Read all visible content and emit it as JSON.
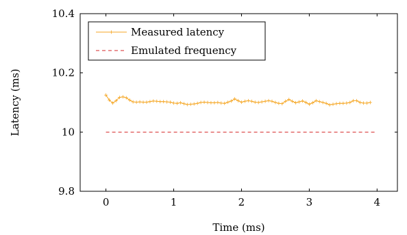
{
  "chart_data": {
    "type": "line",
    "title": "",
    "xlabel": "Time (ms)",
    "ylabel": "Latency (ms)",
    "xlim": [
      -0.38,
      4.3
    ],
    "ylim": [
      9.8,
      10.4
    ],
    "xticks": [
      0,
      1,
      2,
      3,
      4
    ],
    "xtick_labels": [
      "0",
      "1",
      "2",
      "3",
      "4"
    ],
    "yticks": [
      9.8,
      10,
      10.2,
      10.4
    ],
    "ytick_labels": [
      "9.8",
      "10",
      "10.2",
      "10.4"
    ],
    "grid": false,
    "legend_position": "top-left",
    "series": [
      {
        "name": "Measured latency",
        "color": "#f5a623",
        "style": "solid",
        "marker": "plus",
        "x": [
          0.0,
          0.05,
          0.1,
          0.15,
          0.2,
          0.25,
          0.3,
          0.35,
          0.4,
          0.45,
          0.5,
          0.55,
          0.6,
          0.65,
          0.7,
          0.75,
          0.8,
          0.85,
          0.9,
          0.95,
          1.0,
          1.05,
          1.1,
          1.15,
          1.2,
          1.25,
          1.3,
          1.35,
          1.4,
          1.45,
          1.5,
          1.55,
          1.6,
          1.65,
          1.7,
          1.75,
          1.8,
          1.85,
          1.9,
          1.95,
          2.0,
          2.05,
          2.1,
          2.15,
          2.2,
          2.25,
          2.3,
          2.35,
          2.4,
          2.45,
          2.5,
          2.55,
          2.6,
          2.65,
          2.7,
          2.75,
          2.8,
          2.85,
          2.9,
          2.95,
          3.0,
          3.05,
          3.1,
          3.15,
          3.2,
          3.25,
          3.3,
          3.35,
          3.4,
          3.45,
          3.5,
          3.55,
          3.6,
          3.65,
          3.7,
          3.75,
          3.8,
          3.85,
          3.9
        ],
        "y": [
          10.125,
          10.108,
          10.098,
          10.106,
          10.117,
          10.119,
          10.116,
          10.108,
          10.102,
          10.101,
          10.102,
          10.101,
          10.101,
          10.103,
          10.105,
          10.104,
          10.103,
          10.103,
          10.102,
          10.101,
          10.098,
          10.097,
          10.099,
          10.096,
          10.093,
          10.094,
          10.095,
          10.097,
          10.1,
          10.101,
          10.1,
          10.099,
          10.099,
          10.1,
          10.098,
          10.097,
          10.101,
          10.105,
          10.112,
          10.106,
          10.101,
          10.104,
          10.106,
          10.104,
          10.101,
          10.1,
          10.102,
          10.104,
          10.106,
          10.104,
          10.1,
          10.097,
          10.096,
          10.104,
          10.11,
          10.104,
          10.099,
          10.102,
          10.105,
          10.1,
          10.094,
          10.099,
          10.106,
          10.103,
          10.1,
          10.097,
          10.092,
          10.094,
          10.096,
          10.097,
          10.097,
          10.098,
          10.1,
          10.106,
          10.106,
          10.1,
          10.098,
          10.098,
          10.1
        ]
      },
      {
        "name": "Emulated frequency",
        "color": "#d62728",
        "style": "dashed",
        "marker": "none",
        "x": [
          0,
          4
        ],
        "y": [
          10,
          10
        ]
      }
    ]
  }
}
